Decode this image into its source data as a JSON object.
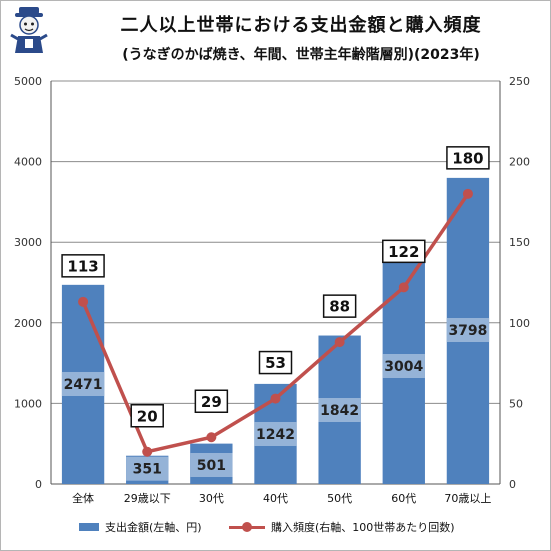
{
  "title": "二人以上世帯における支出金額と購入頻度",
  "subtitle": "(うなぎのかば焼き、年間、世帯主年齢階層別)(2023年)",
  "colors": {
    "bar": "#4f81bd",
    "line": "#c0504d",
    "label_band": "#95b3d7",
    "grid": "#8c8c8c"
  },
  "logo_icon": "mascot-logo-icon",
  "legend": {
    "bar_label": "支出金額(左軸、円)",
    "line_label": "購入頻度(右軸、100世帯あたり回数)"
  },
  "chart_data": {
    "type": "bar",
    "categories": [
      "全体",
      "29歳以下",
      "30代",
      "40代",
      "50代",
      "60代",
      "70歳以上"
    ],
    "series": [
      {
        "name": "支出金額(左軸、円)",
        "type": "bar",
        "axis": "left",
        "values": [
          2471,
          351,
          501,
          1242,
          1842,
          3004,
          3798
        ]
      },
      {
        "name": "購入頻度(右軸、100世帯あたり回数)",
        "type": "line",
        "axis": "right",
        "values": [
          113,
          20,
          29,
          53,
          88,
          122,
          180
        ]
      }
    ],
    "y_left": {
      "min": 0,
      "max": 5000,
      "ticks": [
        0,
        1000,
        2000,
        3000,
        4000,
        5000
      ]
    },
    "y_right": {
      "min": 0,
      "max": 250,
      "ticks": [
        0,
        50,
        100,
        150,
        200,
        250
      ]
    },
    "grid": true,
    "legend_position": "bottom"
  }
}
